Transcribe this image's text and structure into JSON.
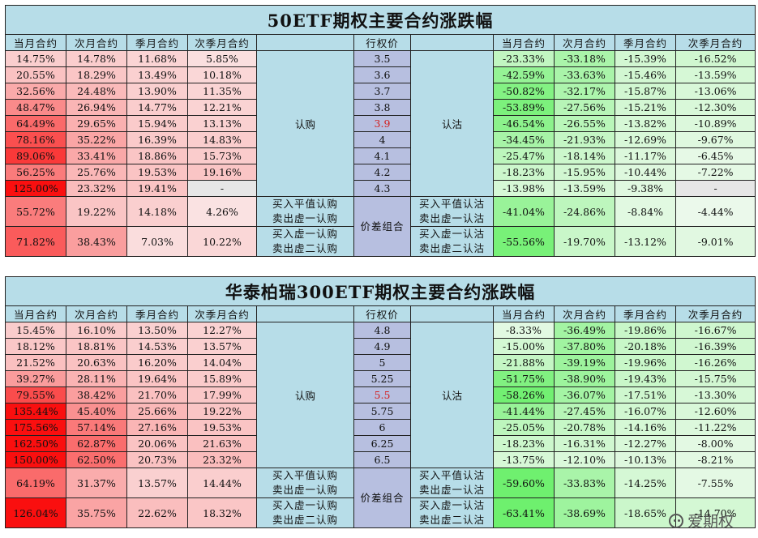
{
  "headers": [
    "当月合约",
    "次月合约",
    "季月合约",
    "次季月合约",
    "",
    "行权价",
    "",
    "当月合约",
    "次月合约",
    "季月合约",
    "次季月合约"
  ],
  "labels": {
    "call": "认购",
    "put": "认沽",
    "spread": "价差组合"
  },
  "tables": [
    {
      "title": "50ETF期权主要合约涨跌幅",
      "rows": [
        {
          "call": [
            "14.75%",
            "14.78%",
            "11.68%",
            "5.85%"
          ],
          "strike": "3.5",
          "put": [
            "-23.33%",
            "-33.18%",
            "-15.39%",
            "-16.52%"
          ]
        },
        {
          "call": [
            "20.55%",
            "18.29%",
            "13.49%",
            "10.18%"
          ],
          "strike": "3.6",
          "put": [
            "-42.59%",
            "-33.63%",
            "-15.46%",
            "-13.59%"
          ]
        },
        {
          "call": [
            "32.56%",
            "24.48%",
            "13.90%",
            "11.35%"
          ],
          "strike": "3.7",
          "put": [
            "-50.82%",
            "-32.17%",
            "-15.87%",
            "-13.06%"
          ]
        },
        {
          "call": [
            "48.47%",
            "26.94%",
            "14.77%",
            "12.21%"
          ],
          "strike": "3.8",
          "put": [
            "-53.89%",
            "-27.56%",
            "-15.21%",
            "-12.30%"
          ]
        },
        {
          "call": [
            "64.49%",
            "29.65%",
            "15.94%",
            "13.13%"
          ],
          "strike": "3.9",
          "put": [
            "-46.54%",
            "-26.55%",
            "-13.82%",
            "-10.89%"
          ]
        },
        {
          "call": [
            "78.16%",
            "35.22%",
            "16.39%",
            "14.83%"
          ],
          "strike": "4",
          "put": [
            "-34.45%",
            "-21.93%",
            "-12.69%",
            "-9.67%"
          ]
        },
        {
          "call": [
            "89.06%",
            "33.41%",
            "18.86%",
            "15.73%"
          ],
          "strike": "4.1",
          "put": [
            "-25.47%",
            "-18.14%",
            "-11.17%",
            "-6.45%"
          ]
        },
        {
          "call": [
            "56.25%",
            "25.76%",
            "19.53%",
            "19.16%"
          ],
          "strike": "4.2",
          "put": [
            "-18.23%",
            "-15.95%",
            "-10.44%",
            "-7.22%"
          ]
        },
        {
          "call": [
            "125.00%",
            "23.32%",
            "19.41%",
            "-"
          ],
          "strike": "4.3",
          "put": [
            "-13.98%",
            "-13.59%",
            "-9.38%",
            "-"
          ]
        }
      ],
      "combos": [
        {
          "call": [
            "55.72%",
            "19.22%",
            "14.18%",
            "4.26%"
          ],
          "call_label": [
            "买入平值认购",
            "卖出虚一认购"
          ],
          "put_label": [
            "买入平值认沽",
            "卖出虚一认沽"
          ],
          "put": [
            "-41.04%",
            "-24.86%",
            "-8.84%",
            "-4.44%"
          ]
        },
        {
          "call": [
            "71.82%",
            "38.43%",
            "7.03%",
            "10.22%"
          ],
          "call_label": [
            "买入虚一认购",
            "卖出虚二认购"
          ],
          "put_label": [
            "买入虚一认沽",
            "卖出虚二认沽"
          ],
          "put": [
            "-55.56%",
            "-19.70%",
            "-13.12%",
            "-9.01%"
          ]
        }
      ]
    },
    {
      "title": "华泰柏瑞300ETF期权主要合约涨跌幅",
      "rows": [
        {
          "call": [
            "15.45%",
            "16.10%",
            "13.50%",
            "12.27%"
          ],
          "strike": "4.8",
          "put": [
            "-8.33%",
            "-36.49%",
            "-19.86%",
            "-16.67%"
          ]
        },
        {
          "call": [
            "18.12%",
            "18.81%",
            "14.53%",
            "13.57%"
          ],
          "strike": "4.9",
          "put": [
            "-15.00%",
            "-37.80%",
            "-20.18%",
            "-16.39%"
          ]
        },
        {
          "call": [
            "21.52%",
            "20.63%",
            "16.20%",
            "14.04%"
          ],
          "strike": "5",
          "put": [
            "-21.88%",
            "-39.19%",
            "-19.96%",
            "-16.26%"
          ]
        },
        {
          "call": [
            "39.27%",
            "28.11%",
            "19.64%",
            "15.89%"
          ],
          "strike": "5.25",
          "put": [
            "-51.75%",
            "-38.90%",
            "-19.43%",
            "-15.75%"
          ]
        },
        {
          "call": [
            "79.55%",
            "38.42%",
            "21.70%",
            "17.99%"
          ],
          "strike": "5.5",
          "put": [
            "-58.26%",
            "-36.07%",
            "-17.51%",
            "-13.30%"
          ]
        },
        {
          "call": [
            "135.44%",
            "45.40%",
            "25.66%",
            "19.22%"
          ],
          "strike": "5.75",
          "put": [
            "-41.44%",
            "-27.45%",
            "-16.07%",
            "-12.60%"
          ]
        },
        {
          "call": [
            "175.56%",
            "57.14%",
            "27.16%",
            "19.53%"
          ],
          "strike": "6",
          "put": [
            "-25.05%",
            "-20.78%",
            "-14.16%",
            "-11.22%"
          ]
        },
        {
          "call": [
            "162.50%",
            "62.87%",
            "20.06%",
            "21.63%"
          ],
          "strike": "6.25",
          "put": [
            "-18.23%",
            "-16.31%",
            "-12.27%",
            "-8.00%"
          ]
        },
        {
          "call": [
            "150.00%",
            "62.50%",
            "20.73%",
            "23.32%"
          ],
          "strike": "6.5",
          "put": [
            "-13.75%",
            "-12.10%",
            "-10.13%",
            "-8.21%"
          ]
        }
      ],
      "combos": [
        {
          "call": [
            "64.19%",
            "31.37%",
            "13.57%",
            "14.44%"
          ],
          "call_label": [
            "买入平值认购",
            "卖出虚一认购"
          ],
          "put_label": [
            "买入平值认沽",
            "卖出虚一认沽"
          ],
          "put": [
            "-59.60%",
            "-33.83%",
            "-14.25%",
            "-7.55%"
          ]
        },
        {
          "call": [
            "126.04%",
            "35.75%",
            "22.62%",
            "18.32%"
          ],
          "call_label": [
            "买入虚一认购",
            "卖出虚二认购"
          ],
          "put_label": [
            "买入虚一认沽",
            "卖出虚二认沽"
          ],
          "put": [
            "-63.41%",
            "-38.69%",
            "-18.65%",
            "-14.70%"
          ]
        }
      ]
    }
  ],
  "watermark": "爱期权",
  "colors": {
    "header": "#b7dde8",
    "strike": "#b7bfe0",
    "red": "#d42020",
    "empty": "#e6e6e6"
  }
}
